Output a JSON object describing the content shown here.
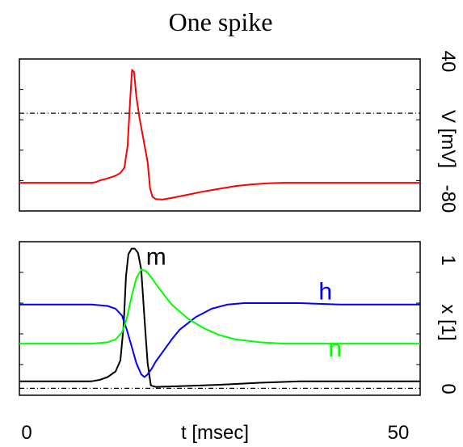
{
  "chart_data": {
    "title": "One spike",
    "type": "line",
    "xlabel": "t [msec]",
    "xlim": [
      0,
      50
    ],
    "x_tick_labels": [
      "0",
      "50"
    ],
    "panels": [
      {
        "id": "voltage",
        "ylabel": "V [mV]",
        "ylim": [
          -90,
          50
        ],
        "y_tick_labels": [
          "40",
          "-80"
        ],
        "reference_line": 0,
        "series": [
          {
            "name": "",
            "color": "#ff0000",
            "x": [
              0,
              9,
              9.5,
              10,
              11,
              12,
              12.6,
              13.1,
              13.5,
              13.8,
              14.05,
              14.3,
              14.6,
              15.0,
              15.5,
              16.0,
              16.3,
              16.6,
              17.0,
              17.8,
              19,
              21,
              23,
              25,
              27,
              29,
              31,
              33,
              35,
              40,
              45,
              50
            ],
            "y": [
              -64,
              -64,
              -63.5,
              -62,
              -60,
              -57.5,
              -55,
              -50,
              -30,
              10,
              40,
              38,
              15,
              -5,
              -25,
              -45,
              -69,
              -77,
              -79,
              -79.5,
              -78,
              -75,
              -72,
              -69.5,
              -67,
              -65.5,
              -64.5,
              -64,
              -64,
              -64,
              -64,
              -64
            ]
          }
        ]
      },
      {
        "id": "gates",
        "ylabel": "x [1]",
        "ylim": [
          -0.05,
          1.05
        ],
        "y_tick_labels": [
          "1",
          "0"
        ],
        "reference_line": 0,
        "series": [
          {
            "name": "m",
            "color": "#000000",
            "x": [
              0,
              9,
              10,
              11,
              12,
              12.6,
              13.0,
              13.3,
              13.6,
              14.0,
              14.4,
              14.8,
              15.2,
              15.6,
              16.0,
              16.4,
              17.0,
              20,
              25,
              30,
              35,
              40,
              45,
              50
            ],
            "y": [
              0.05,
              0.05,
              0.06,
              0.08,
              0.12,
              0.2,
              0.45,
              0.8,
              0.96,
              1.0,
              1.0,
              0.97,
              0.85,
              0.5,
              0.18,
              0.02,
              0.01,
              0.015,
              0.025,
              0.04,
              0.05,
              0.05,
              0.05,
              0.05
            ]
          },
          {
            "name": "h",
            "color": "#0000ff",
            "x": [
              0,
              9,
              11,
              12,
              12.8,
              13.4,
              14.0,
              14.6,
              15.2,
              15.6,
              16.0,
              16.5,
              17,
              18,
              19,
              20,
              22,
              24,
              26,
              28,
              30,
              35,
              40,
              50
            ],
            "y": [
              0.6,
              0.6,
              0.59,
              0.57,
              0.52,
              0.42,
              0.3,
              0.18,
              0.1,
              0.08,
              0.1,
              0.14,
              0.19,
              0.27,
              0.35,
              0.42,
              0.51,
              0.57,
              0.6,
              0.61,
              0.61,
              0.61,
              0.6,
              0.6
            ]
          },
          {
            "name": "n",
            "color": "#00ff00",
            "x": [
              0,
              9,
              11,
              12,
              12.8,
              13.4,
              14.0,
              14.6,
              15.2,
              15.8,
              16.5,
              17.5,
              19,
              21,
              23,
              25,
              27,
              30,
              33,
              36,
              40,
              50
            ],
            "y": [
              0.32,
              0.32,
              0.33,
              0.35,
              0.4,
              0.5,
              0.66,
              0.79,
              0.85,
              0.84,
              0.79,
              0.71,
              0.6,
              0.5,
              0.43,
              0.38,
              0.35,
              0.33,
              0.32,
              0.32,
              0.32,
              0.32
            ]
          }
        ]
      }
    ]
  }
}
